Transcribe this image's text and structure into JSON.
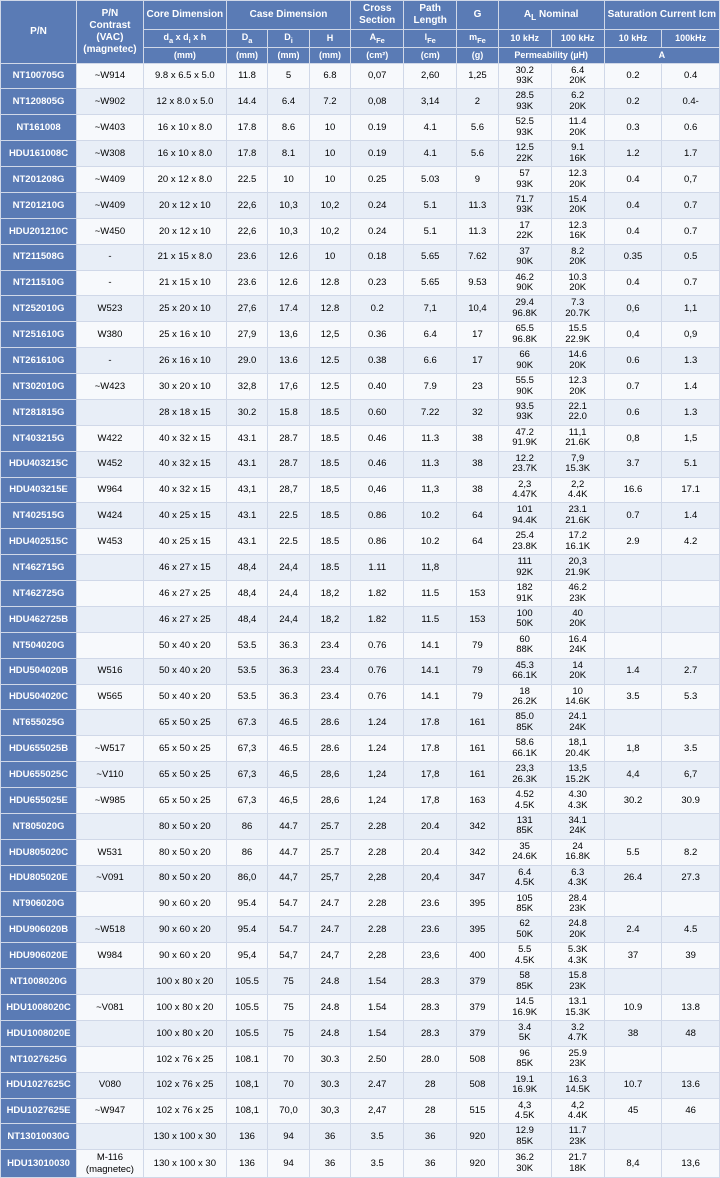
{
  "header": {
    "row1": [
      "P/N",
      "P/N Contrast (VAC) (magnetec)",
      "Core Dimension",
      "Case Dimension",
      "Cross Section",
      "Path Length",
      "G",
      "A<sub>L</sub> Nominal",
      "Saturation Current Icm"
    ],
    "row2": [
      "d<sub>a</sub> x d<sub>i</sub> x h",
      "D<sub>a</sub>",
      "D<sub>i</sub>",
      "H",
      "A<sub>Fe</sub>",
      "l<sub>Fe</sub>",
      "m<sub>Fe</sub>",
      "10 kHz",
      "100 kHz",
      "10 kHz",
      "100kHz"
    ],
    "row3": [
      "(mm)",
      "(mm)",
      "(mm)",
      "(mm)",
      "(cm²)",
      "(cm)",
      "(g)",
      "Permeability (µH)",
      "A"
    ]
  },
  "rows": [
    {
      "pn": "NT100705G",
      "vac": "~W914",
      "core": "9.8 x 6.5 x 5.0",
      "da": "11.8",
      "di": "5",
      "h": "6.8",
      "afe": "0,07",
      "lfe": "2,60",
      "g": "1,25",
      "al10": [
        "30.2",
        "93K"
      ],
      "al100": [
        "6.4",
        "20K"
      ],
      "s10": "0.2",
      "s100": "0.4"
    },
    {
      "pn": "NT120805G",
      "vac": "~W902",
      "core": "12 x 8.0 x 5.0",
      "da": "14.4",
      "di": "6.4",
      "h": "7.2",
      "afe": "0,08",
      "lfe": "3,14",
      "g": "2",
      "al10": [
        "28.5",
        "93K"
      ],
      "al100": [
        "6.2",
        "20K"
      ],
      "s10": "0.2",
      "s100": "0.4-"
    },
    {
      "pn": "NT161008",
      "vac": "~W403",
      "core": "16 x 10 x 8.0",
      "da": "17.8",
      "di": "8.6",
      "h": "10",
      "afe": "0.19",
      "lfe": "4.1",
      "g": "5.6",
      "al10": [
        "52.5",
        "93K"
      ],
      "al100": [
        "11.4",
        "20K"
      ],
      "s10": "0.3",
      "s100": "0.6"
    },
    {
      "pn": "HDU161008C",
      "vac": "~W308",
      "core": "16 x 10 x 8.0",
      "da": "17.8",
      "di": "8.1",
      "h": "10",
      "afe": "0.19",
      "lfe": "4.1",
      "g": "5.6",
      "al10": [
        "12.5",
        "22K"
      ],
      "al100": [
        "9.1",
        "16K"
      ],
      "s10": "1.2",
      "s100": "1.7"
    },
    {
      "pn": "NT201208G",
      "vac": "~W409",
      "core": "20 x 12 x 8.0",
      "da": "22.5",
      "di": "10",
      "h": "10",
      "afe": "0.25",
      "lfe": "5.03",
      "g": "9",
      "al10": [
        "57",
        "93K"
      ],
      "al100": [
        "12.3",
        "20K"
      ],
      "s10": "0.4",
      "s100": "0,7"
    },
    {
      "pn": "NT201210G",
      "vac": "~W409",
      "core": "20 x 12 x 10",
      "da": "22,6",
      "di": "10,3",
      "h": "10,2",
      "afe": "0.24",
      "lfe": "5.1",
      "g": "11.3",
      "al10": [
        "71.7",
        "93K"
      ],
      "al100": [
        "15.4",
        "20K"
      ],
      "s10": "0.4",
      "s100": "0.7"
    },
    {
      "pn": "HDU201210C",
      "vac": "~W450",
      "core": "20 x 12 x 10",
      "da": "22,6",
      "di": "10,3",
      "h": "10,2",
      "afe": "0.24",
      "lfe": "5.1",
      "g": "11.3",
      "al10": [
        "17",
        "22K"
      ],
      "al100": [
        "12.3",
        "16K"
      ],
      "s10": "0.4",
      "s100": "0.7"
    },
    {
      "pn": "NT211508G",
      "vac": "-",
      "core": "21 x 15 x 8.0",
      "da": "23.6",
      "di": "12.6",
      "h": "10",
      "afe": "0.18",
      "lfe": "5.65",
      "g": "7.62",
      "al10": [
        "37",
        "90K"
      ],
      "al100": [
        "8.2",
        "20K"
      ],
      "s10": "0.35",
      "s100": "0.5"
    },
    {
      "pn": "NT211510G",
      "vac": "-",
      "core": "21 x 15 x 10",
      "da": "23.6",
      "di": "12.6",
      "h": "12.8",
      "afe": "0.23",
      "lfe": "5.65",
      "g": "9.53",
      "al10": [
        "46.2",
        "90K"
      ],
      "al100": [
        "10.3",
        "20K"
      ],
      "s10": "0.4",
      "s100": "0.7"
    },
    {
      "pn": "NT252010G",
      "vac": "W523",
      "core": "25 x 20 x 10",
      "da": "27,6",
      "di": "17.4",
      "h": "12.8",
      "afe": "0.2",
      "lfe": "7,1",
      "g": "10,4",
      "al10": [
        "29.4",
        "96.8K"
      ],
      "al100": [
        "7.3",
        "20.7K"
      ],
      "s10": "0,6",
      "s100": "1,1"
    },
    {
      "pn": "NT251610G",
      "vac": "W380",
      "core": "25 x 16 x 10",
      "da": "27,9",
      "di": "13,6",
      "h": "12,5",
      "afe": "0.36",
      "lfe": "6.4",
      "g": "17",
      "al10": [
        "65.5",
        "96.8K"
      ],
      "al100": [
        "15.5",
        "22.9K"
      ],
      "s10": "0,4",
      "s100": "0,9"
    },
    {
      "pn": "NT261610G",
      "vac": "-",
      "core": "26 x 16 x 10",
      "da": "29.0",
      "di": "13.6",
      "h": "12.5",
      "afe": "0.38",
      "lfe": "6.6",
      "g": "17",
      "al10": [
        "66",
        "90K"
      ],
      "al100": [
        "14.6",
        "20K"
      ],
      "s10": "0.6",
      "s100": "1.3"
    },
    {
      "pn": "NT302010G",
      "vac": "~W423",
      "core": "30 x 20 x 10",
      "da": "32,8",
      "di": "17,6",
      "h": "12.5",
      "afe": "0.40",
      "lfe": "7.9",
      "g": "23",
      "al10": [
        "55.5",
        "90K"
      ],
      "al100": [
        "12.3",
        "20K"
      ],
      "s10": "0.7",
      "s100": "1.4"
    },
    {
      "pn": "NT281815G",
      "vac": "",
      "core": "28 x 18 x 15",
      "da": "30.2",
      "di": "15.8",
      "h": "18.5",
      "afe": "0.60",
      "lfe": "7.22",
      "g": "32",
      "al10": [
        "93.5",
        "93K"
      ],
      "al100": [
        "22.1",
        "22.0"
      ],
      "s10": "0.6",
      "s100": "1.3"
    },
    {
      "pn": "NT403215G",
      "vac": "W422",
      "core": "40 x 32 x 15",
      "da": "43.1",
      "di": "28.7",
      "h": "18.5",
      "afe": "0.46",
      "lfe": "11.3",
      "g": "38",
      "al10": [
        "47.2",
        "91.9K"
      ],
      "al100": [
        "11,1",
        "21.6K"
      ],
      "s10": "0,8",
      "s100": "1,5"
    },
    {
      "pn": "HDU403215C",
      "vac": "W452",
      "core": "40 x 32 x 15",
      "da": "43.1",
      "di": "28.7",
      "h": "18.5",
      "afe": "0.46",
      "lfe": "11.3",
      "g": "38",
      "al10": [
        "12.2",
        "23.7K"
      ],
      "al100": [
        "7,9",
        "15.3K"
      ],
      "s10": "3.7",
      "s100": "5.1"
    },
    {
      "pn": "HDU403215E",
      "vac": "W964",
      "core": "40 x 32 x 15",
      "da": "43,1",
      "di": "28,7",
      "h": "18,5",
      "afe": "0,46",
      "lfe": "11,3",
      "g": "38",
      "al10": [
        "2,3",
        "4.47K"
      ],
      "al100": [
        "2,2",
        "4.4K"
      ],
      "s10": "16.6",
      "s100": "17.1"
    },
    {
      "pn": "NT402515G",
      "vac": "W424",
      "core": "40 x 25 x 15",
      "da": "43.1",
      "di": "22.5",
      "h": "18.5",
      "afe": "0.86",
      "lfe": "10.2",
      "g": "64",
      "al10": [
        "101",
        "94.4K"
      ],
      "al100": [
        "23.1",
        "21.6K"
      ],
      "s10": "0.7",
      "s100": "1.4"
    },
    {
      "pn": "HDU402515C",
      "vac": "W453",
      "core": "40 x 25 x 15",
      "da": "43.1",
      "di": "22.5",
      "h": "18.5",
      "afe": "0.86",
      "lfe": "10.2",
      "g": "64",
      "al10": [
        "25.4",
        "23.8K"
      ],
      "al100": [
        "17.2",
        "16.1K"
      ],
      "s10": "2.9",
      "s100": "4.2"
    },
    {
      "pn": "NT462715G",
      "vac": "",
      "core": "46 x 27 x 15",
      "da": "48,4",
      "di": "24,4",
      "h": "18.5",
      "afe": "1.11",
      "lfe": "11,8",
      "g": "",
      "al10": [
        "111",
        "92K"
      ],
      "al100": [
        "20,3",
        "21.9K"
      ],
      "s10": "",
      "s100": ""
    },
    {
      "pn": "NT462725G",
      "vac": "",
      "core": "46 x 27 x 25",
      "da": "48,4",
      "di": "24,4",
      "h": "18,2",
      "afe": "1.82",
      "lfe": "11.5",
      "g": "153",
      "al10": [
        "182",
        "91K"
      ],
      "al100": [
        "46.2",
        "23K"
      ],
      "s10": "",
      "s100": ""
    },
    {
      "pn": "HDU462725B",
      "vac": "",
      "core": "46 x 27 x 25",
      "da": "48,4",
      "di": "24,4",
      "h": "18,2",
      "afe": "1.82",
      "lfe": "11.5",
      "g": "153",
      "al10": [
        "100",
        "50K"
      ],
      "al100": [
        "40",
        "20K"
      ],
      "s10": "",
      "s100": ""
    },
    {
      "pn": "NT504020G",
      "vac": "",
      "core": "50 x 40 x 20",
      "da": "53.5",
      "di": "36.3",
      "h": "23.4",
      "afe": "0.76",
      "lfe": "14.1",
      "g": "79",
      "al10": [
        "60",
        "88K"
      ],
      "al100": [
        "16.4",
        "24K"
      ],
      "s10": "",
      "s100": ""
    },
    {
      "pn": "HDU504020B",
      "vac": "W516",
      "core": "50 x 40 x 20",
      "da": "53.5",
      "di": "36.3",
      "h": "23.4",
      "afe": "0.76",
      "lfe": "14.1",
      "g": "79",
      "al10": [
        "45.3",
        "66.1K"
      ],
      "al100": [
        "14",
        "20K"
      ],
      "s10": "1.4",
      "s100": "2.7"
    },
    {
      "pn": "HDU504020C",
      "vac": "W565",
      "core": "50 x 40 x 20",
      "da": "53.5",
      "di": "36.3",
      "h": "23.4",
      "afe": "0.76",
      "lfe": "14.1",
      "g": "79",
      "al10": [
        "18",
        "26.2K"
      ],
      "al100": [
        "10",
        "14.6K"
      ],
      "s10": "3.5",
      "s100": "5.3"
    },
    {
      "pn": "NT655025G",
      "vac": "",
      "core": "65 x 50 x 25",
      "da": "67.3",
      "di": "46.5",
      "h": "28.6",
      "afe": "1.24",
      "lfe": "17.8",
      "g": "161",
      "al10": [
        "85.0",
        "85K"
      ],
      "al100": [
        "24.1",
        "24K"
      ],
      "s10": "",
      "s100": ""
    },
    {
      "pn": "HDU655025B",
      "vac": "~W517",
      "core": "65 x 50 x 25",
      "da": "67,3",
      "di": "46.5",
      "h": "28.6",
      "afe": "1.24",
      "lfe": "17.8",
      "g": "161",
      "al10": [
        "58.6",
        "66.1K"
      ],
      "al100": [
        "18,1",
        "20.4K"
      ],
      "s10": "1,8",
      "s100": "3.5"
    },
    {
      "pn": "HDU655025C",
      "vac": "~V110",
      "core": "65 x 50 x 25",
      "da": "67,3",
      "di": "46,5",
      "h": "28,6",
      "afe": "1,24",
      "lfe": "17,8",
      "g": "161",
      "al10": [
        "23,3",
        "26.3K"
      ],
      "al100": [
        "13,5",
        "15.2K"
      ],
      "s10": "4,4",
      "s100": "6,7"
    },
    {
      "pn": "HDU655025E",
      "vac": "~W985",
      "core": "65 x 50 x 25",
      "da": "67,3",
      "di": "46,5",
      "h": "28,6",
      "afe": "1,24",
      "lfe": "17,8",
      "g": "163",
      "al10": [
        "4.52",
        "4.5K"
      ],
      "al100": [
        "4.30",
        "4.3K"
      ],
      "s10": "30.2",
      "s100": "30.9"
    },
    {
      "pn": "NT805020G",
      "vac": "",
      "core": "80 x 50 x 20",
      "da": "86",
      "di": "44.7",
      "h": "25.7",
      "afe": "2.28",
      "lfe": "20.4",
      "g": "342",
      "al10": [
        "131",
        "85K"
      ],
      "al100": [
        "34.1",
        "24K"
      ],
      "s10": "",
      "s100": ""
    },
    {
      "pn": "HDU805020C",
      "vac": "W531",
      "core": "80 x 50 x 20",
      "da": "86",
      "di": "44.7",
      "h": "25.7",
      "afe": "2.28",
      "lfe": "20.4",
      "g": "342",
      "al10": [
        "35",
        "24.6K"
      ],
      "al100": [
        "24",
        "16.8K"
      ],
      "s10": "5.5",
      "s100": "8.2"
    },
    {
      "pn": "HDU805020E",
      "vac": "~V091",
      "core": "80 x 50 x 20",
      "da": "86,0",
      "di": "44,7",
      "h": "25,7",
      "afe": "2,28",
      "lfe": "20,4",
      "g": "347",
      "al10": [
        "6.4",
        "4.5K"
      ],
      "al100": [
        "6.3",
        "4.3K"
      ],
      "s10": "26.4",
      "s100": "27.3"
    },
    {
      "pn": "NT906020G",
      "vac": "",
      "core": "90 x 60 x 20",
      "da": "95.4",
      "di": "54.7",
      "h": "24.7",
      "afe": "2.28",
      "lfe": "23.6",
      "g": "395",
      "al10": [
        "105",
        "85K"
      ],
      "al100": [
        "28.4",
        "23K"
      ],
      "s10": "",
      "s100": ""
    },
    {
      "pn": "HDU906020B",
      "vac": "~W518",
      "core": "90 x 60 x 20",
      "da": "95.4",
      "di": "54.7",
      "h": "24.7",
      "afe": "2.28",
      "lfe": "23.6",
      "g": "395",
      "al10": [
        "62",
        "50K"
      ],
      "al100": [
        "24.8",
        "20K"
      ],
      "s10": "2.4",
      "s100": "4.5"
    },
    {
      "pn": "HDU906020E",
      "vac": "W984",
      "core": "90 x 60 x 20",
      "da": "95,4",
      "di": "54,7",
      "h": "24,7",
      "afe": "2,28",
      "lfe": "23,6",
      "g": "400",
      "al10": [
        "5.5",
        "4.5K"
      ],
      "al100": [
        "5.3K",
        "4.3K"
      ],
      "s10": "37",
      "s100": "39"
    },
    {
      "pn": "NT1008020G",
      "vac": "",
      "core": "100 x 80 x 20",
      "da": "105.5",
      "di": "75",
      "h": "24.8",
      "afe": "1.54",
      "lfe": "28.3",
      "g": "379",
      "al10": [
        "58",
        "85K"
      ],
      "al100": [
        "15.8",
        "23K"
      ],
      "s10": "",
      "s100": ""
    },
    {
      "pn": "HDU1008020C",
      "vac": "~V081",
      "core": "100 x 80 x 20",
      "da": "105.5",
      "di": "75",
      "h": "24.8",
      "afe": "1.54",
      "lfe": "28.3",
      "g": "379",
      "al10": [
        "14.5",
        "16.9K"
      ],
      "al100": [
        "13.1",
        "15.3K"
      ],
      "s10": "10.9",
      "s100": "13.8"
    },
    {
      "pn": "HDU1008020E",
      "vac": "",
      "core": "100 x 80 x 20",
      "da": "105.5",
      "di": "75",
      "h": "24.8",
      "afe": "1.54",
      "lfe": "28.3",
      "g": "379",
      "al10": [
        "3.4",
        "5K"
      ],
      "al100": [
        "3.2",
        "4.7K"
      ],
      "s10": "38",
      "s100": "48"
    },
    {
      "pn": "NT1027625G",
      "vac": "",
      "core": "102 x 76 x 25",
      "da": "108.1",
      "di": "70",
      "h": "30.3",
      "afe": "2.50",
      "lfe": "28.0",
      "g": "508",
      "al10": [
        "96",
        "85K"
      ],
      "al100": [
        "25.9",
        "23K"
      ],
      "s10": "",
      "s100": ""
    },
    {
      "pn": "HDU1027625C",
      "vac": "V080",
      "core": "102 x 76 x 25",
      "da": "108,1",
      "di": "70",
      "h": "30.3",
      "afe": "2.47",
      "lfe": "28",
      "g": "508",
      "al10": [
        "19.1",
        "16.9K"
      ],
      "al100": [
        "16.3",
        "14.5K"
      ],
      "s10": "10.7",
      "s100": "13.6"
    },
    {
      "pn": "HDU1027625E",
      "vac": "~W947",
      "core": "102 x 76 x 25",
      "da": "108,1",
      "di": "70,0",
      "h": "30,3",
      "afe": "2,47",
      "lfe": "28",
      "g": "515",
      "al10": [
        "4,3",
        "4.5K"
      ],
      "al100": [
        "4,2",
        "4.4K"
      ],
      "s10": "45",
      "s100": "46"
    },
    {
      "pn": "NT13010030G",
      "vac": "",
      "core": "130 x 100 x 30",
      "da": "136",
      "di": "94",
      "h": "36",
      "afe": "3.5",
      "lfe": "36",
      "g": "920",
      "al10": [
        "12.9",
        "85K"
      ],
      "al100": [
        "11.7",
        "23K"
      ],
      "s10": "",
      "s100": ""
    },
    {
      "pn": "HDU13010030",
      "vac": "M-116 (magnetec)",
      "core": "130 x 100 x 30",
      "da": "136",
      "di": "94",
      "h": "36",
      "afe": "3.5",
      "lfe": "36",
      "g": "920",
      "al10": [
        "36.2",
        "30K"
      ],
      "al100": [
        "21.7",
        "18K"
      ],
      "s10": "8,4",
      "s100": "13,6"
    }
  ]
}
